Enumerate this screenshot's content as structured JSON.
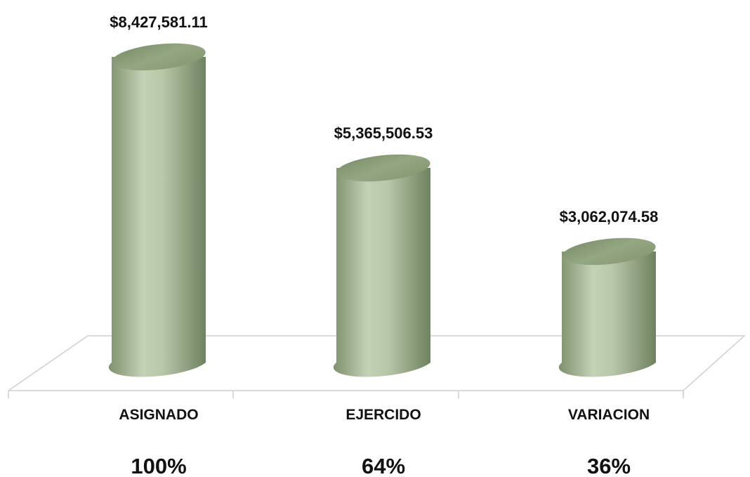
{
  "chart_data": {
    "type": "bar",
    "style": "3d-cylinder",
    "categories": [
      "ASIGNADO",
      "EJERCIDO",
      "VARIACION"
    ],
    "values": [
      8427581.11,
      5365506.53,
      3062074.58
    ],
    "value_labels": [
      "$8,427,581.11",
      "$5,365,506.53",
      "$3,062,074.58"
    ],
    "percent_labels": [
      "100%",
      "64%",
      "36%"
    ],
    "title": "",
    "xlabel": "",
    "ylabel": "",
    "ylim": [
      0,
      8427581.11
    ],
    "grid": false,
    "legend": "none",
    "colors": {
      "bar_light": "#c9d6bb",
      "bar_mid": "#9fb18e",
      "bar_dark": "#6f8160",
      "top_cap": "#8da07c",
      "floor_line": "#d0d0d0"
    }
  }
}
